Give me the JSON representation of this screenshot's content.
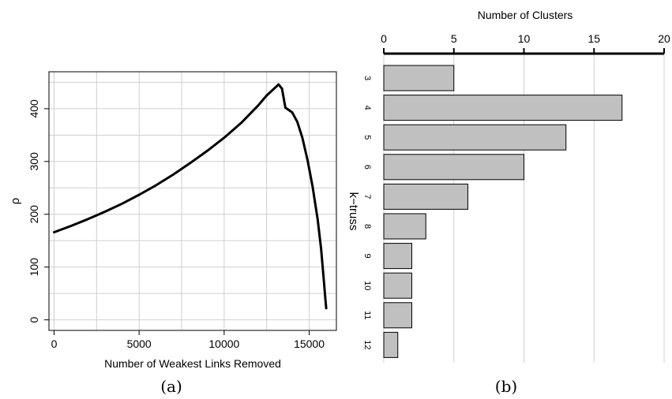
{
  "chart_data": [
    {
      "type": "line",
      "xlabel": "Number of Weakest Links Removed",
      "ylabel": "ρ",
      "xlim": [
        -300,
        16600
      ],
      "ylim": [
        -20,
        470
      ],
      "x_ticks": [
        0,
        5000,
        10000,
        15000
      ],
      "y_ticks": [
        0,
        100,
        200,
        300,
        400
      ],
      "x_tick_labels": [
        "0",
        "5000",
        "10000",
        "15000"
      ],
      "y_tick_labels": [
        "0",
        "100",
        "200",
        "300",
        "400"
      ],
      "grid": true,
      "caption": "(a)",
      "series": [
        {
          "x": [
            0,
            1000,
            2000,
            3000,
            4000,
            5000,
            6000,
            7000,
            8000,
            9000,
            10000,
            11000,
            12000,
            12500,
            13000,
            13200,
            13400,
            13600,
            14000,
            14300,
            14600,
            14900,
            15200,
            15500,
            15700,
            15850,
            15950,
            16000
          ],
          "y": [
            166,
            178,
            191,
            205,
            220,
            237,
            255,
            275,
            297,
            320,
            345,
            373,
            406,
            425,
            440,
            446,
            438,
            402,
            393,
            375,
            345,
            303,
            253,
            190,
            135,
            80,
            40,
            22
          ]
        }
      ]
    },
    {
      "type": "bar",
      "orientation": "horizontal",
      "xlabel": "Number of Clusters",
      "ylabel": "k−truss",
      "xlim": [
        0,
        20
      ],
      "x_ticks": [
        0,
        5,
        10,
        15,
        20
      ],
      "x_tick_labels": [
        "0",
        "5",
        "10",
        "15",
        "20"
      ],
      "grid": true,
      "caption": "(b)",
      "categories": [
        "3",
        "4",
        "5",
        "6",
        "7",
        "8",
        "9",
        "10",
        "11",
        "12"
      ],
      "values": [
        5,
        17,
        13,
        10,
        6,
        3,
        2,
        2,
        2,
        1
      ],
      "bar_color": "#c0c0c0"
    }
  ]
}
